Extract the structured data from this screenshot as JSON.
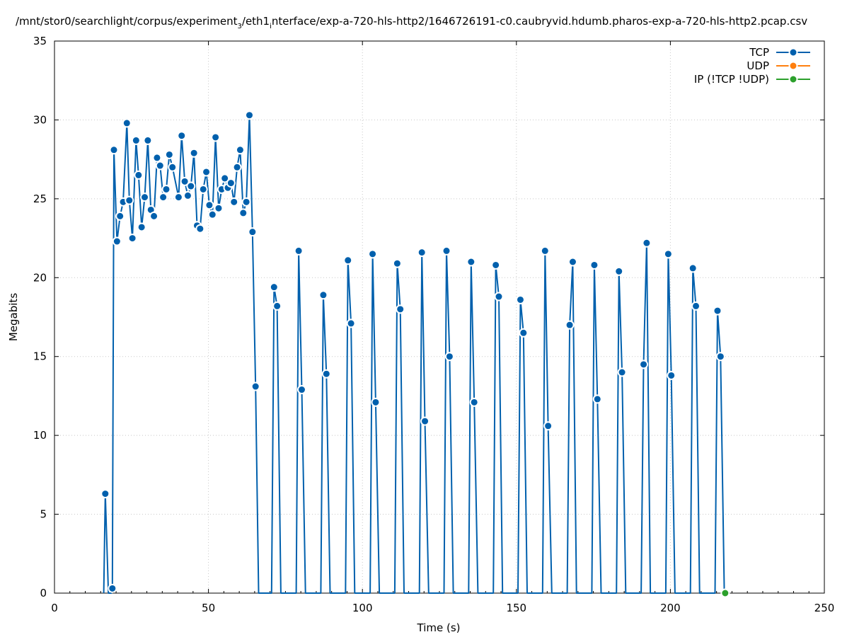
{
  "chart_data": {
    "type": "line",
    "title": "/mnt/stor0/searchlight/corpus/experiment_3/eth1_interface/exp-a-720-hls-http2/1646726191-c0.caubryvid.hdumb.pharos-exp-a-720-hls-http2.pcap.csv",
    "title_parts": {
      "a": "/mnt/stor0/searchlight/corpus/experiment",
      "sub1": "3",
      "b": "/eth1",
      "sub2": "i",
      "c": "nterface/exp-a-720-hls-http2/1646726191-c0.caubryvid.hdumb.pharos-exp-a-720-hls-http2.pcap.csv"
    },
    "xlabel": "Time (s)",
    "ylabel": "Megabits",
    "xlim": [
      0,
      250
    ],
    "ylim": [
      0,
      35
    ],
    "xticks": [
      0,
      50,
      100,
      150,
      200,
      250
    ],
    "yticks": [
      0,
      5,
      10,
      15,
      20,
      25,
      30,
      35
    ],
    "grid": true,
    "legend_position": "top-right",
    "series": [
      {
        "name": "TCP",
        "color": "#0060ad",
        "points": [
          [
            16,
            0
          ],
          [
            16.5,
            6.3
          ],
          [
            17.5,
            0
          ],
          [
            18.5,
            0
          ],
          [
            18.8,
            0.3
          ],
          [
            19.3,
            28.1
          ],
          [
            20.3,
            22.3
          ],
          [
            21.3,
            23.9
          ],
          [
            22.3,
            24.8
          ],
          [
            23.5,
            29.8
          ],
          [
            24.3,
            24.9
          ],
          [
            25.3,
            22.5
          ],
          [
            26.5,
            28.7
          ],
          [
            27.3,
            26.5
          ],
          [
            28.3,
            23.2
          ],
          [
            29.3,
            25.1
          ],
          [
            30.3,
            28.7
          ],
          [
            31.3,
            24.3
          ],
          [
            32.3,
            23.9
          ],
          [
            33.3,
            27.6
          ],
          [
            34.3,
            27.1
          ],
          [
            35.3,
            25.1
          ],
          [
            36.3,
            25.6
          ],
          [
            37.3,
            27.8
          ],
          [
            38.3,
            27.0
          ],
          [
            40.3,
            25.1
          ],
          [
            41.3,
            29.0
          ],
          [
            42.3,
            26.1
          ],
          [
            43.3,
            25.2
          ],
          [
            44.3,
            25.8
          ],
          [
            45.3,
            27.9
          ],
          [
            46.3,
            23.3
          ],
          [
            47.3,
            23.1
          ],
          [
            48.3,
            25.6
          ],
          [
            49.3,
            26.7
          ],
          [
            50.3,
            24.6
          ],
          [
            51.3,
            24.0
          ],
          [
            52.3,
            28.9
          ],
          [
            53.3,
            24.4
          ],
          [
            54.3,
            25.6
          ],
          [
            55.3,
            26.3
          ],
          [
            56.3,
            25.7
          ],
          [
            57.3,
            26.0
          ],
          [
            58.3,
            24.8
          ],
          [
            59.3,
            27.0
          ],
          [
            60.3,
            28.1
          ],
          [
            61.3,
            24.1
          ],
          [
            62.3,
            24.8
          ],
          [
            63.3,
            30.3
          ],
          [
            64.3,
            22.9
          ],
          [
            65.3,
            13.1
          ],
          [
            66.3,
            0
          ],
          [
            70.5,
            0
          ],
          [
            71.3,
            19.4
          ],
          [
            72.3,
            18.2
          ],
          [
            73.5,
            0
          ],
          [
            78.5,
            0
          ],
          [
            79.3,
            21.7
          ],
          [
            80.3,
            12.9
          ],
          [
            81.5,
            0
          ],
          [
            86.5,
            0
          ],
          [
            87.3,
            18.9
          ],
          [
            88.3,
            13.9
          ],
          [
            89.5,
            0
          ],
          [
            94.5,
            0
          ],
          [
            95.3,
            21.1
          ],
          [
            96.3,
            17.1
          ],
          [
            97.5,
            0
          ],
          [
            102.5,
            0
          ],
          [
            103.3,
            21.5
          ],
          [
            104.3,
            12.1
          ],
          [
            105.5,
            0
          ],
          [
            110.5,
            0
          ],
          [
            111.3,
            20.9
          ],
          [
            112.3,
            18.0
          ],
          [
            113.5,
            0
          ],
          [
            118.5,
            0
          ],
          [
            119.3,
            21.6
          ],
          [
            120.3,
            10.9
          ],
          [
            121.5,
            0
          ],
          [
            126.5,
            0
          ],
          [
            127.3,
            21.7
          ],
          [
            128.3,
            15.0
          ],
          [
            129.5,
            0
          ],
          [
            134.5,
            0
          ],
          [
            135.3,
            21.0
          ],
          [
            136.3,
            12.1
          ],
          [
            137.5,
            0
          ],
          [
            142.5,
            0
          ],
          [
            143.3,
            20.8
          ],
          [
            144.3,
            18.8
          ],
          [
            145.5,
            0
          ],
          [
            150.5,
            0
          ],
          [
            151.3,
            18.6
          ],
          [
            152.3,
            16.5
          ],
          [
            153.5,
            0
          ],
          [
            158.5,
            0
          ],
          [
            159.3,
            21.7
          ],
          [
            160.3,
            10.6
          ],
          [
            161.5,
            0
          ],
          [
            166.5,
            0
          ],
          [
            167.3,
            17.0
          ],
          [
            168.3,
            21.0
          ],
          [
            169.5,
            0
          ],
          [
            174.5,
            0
          ],
          [
            175.3,
            20.8
          ],
          [
            176.3,
            12.3
          ],
          [
            177.5,
            0
          ],
          [
            182.5,
            0
          ],
          [
            183.3,
            20.4
          ],
          [
            184.3,
            14.0
          ],
          [
            185.5,
            0
          ],
          [
            190.5,
            0
          ],
          [
            191.3,
            14.5
          ],
          [
            192.3,
            22.2
          ],
          [
            193.5,
            0
          ],
          [
            198.5,
            0
          ],
          [
            199.3,
            21.5
          ],
          [
            200.3,
            13.8
          ],
          [
            201.5,
            0
          ],
          [
            206.5,
            0
          ],
          [
            207.3,
            20.6
          ],
          [
            208.3,
            18.2
          ],
          [
            209.5,
            0
          ],
          [
            214.5,
            0
          ],
          [
            215.3,
            17.9
          ],
          [
            216.3,
            15.0
          ],
          [
            217.5,
            0
          ]
        ]
      },
      {
        "name": "UDP",
        "color": "#ff7f0e",
        "points": []
      },
      {
        "name": "IP (!TCP  !UDP)",
        "color": "#2ca02c",
        "points": [
          [
            217.8,
            0
          ]
        ]
      }
    ]
  }
}
